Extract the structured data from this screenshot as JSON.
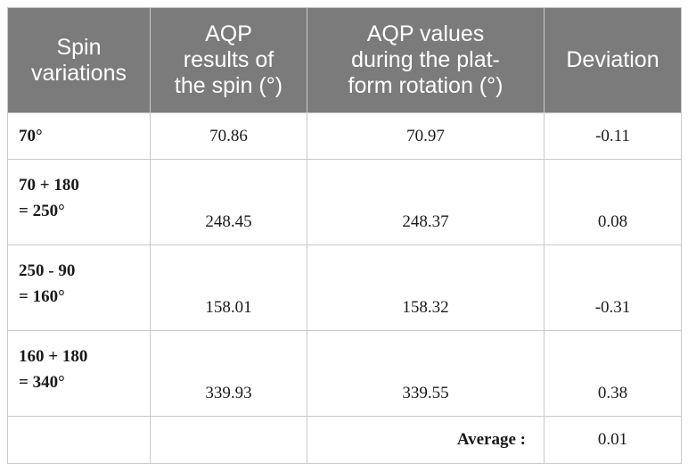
{
  "table": {
    "headers": [
      "Spin variations",
      "AQP results of the spin (°)",
      "AQP values during the plat-form rotation (°)",
      "Deviation"
    ],
    "header_lines": [
      [
        "Spin",
        "variations"
      ],
      [
        "AQP",
        "results of",
        "the spin (°)"
      ],
      [
        "AQP values",
        "during the plat-",
        "form rotation (°)"
      ],
      [
        "Deviation"
      ]
    ],
    "rows": [
      {
        "label_lines": [
          "70°"
        ],
        "spin": "70.86",
        "platform": "70.97",
        "deviation": "-0.11"
      },
      {
        "label_lines": [
          "70 + 180",
          "= 250°"
        ],
        "spin": "248.45",
        "platform": "248.37",
        "deviation": "0.08"
      },
      {
        "label_lines": [
          "250 - 90",
          "= 160°"
        ],
        "spin": "158.01",
        "platform": "158.32",
        "deviation": "-0.31"
      },
      {
        "label_lines": [
          "160 + 180",
          "= 340°"
        ],
        "spin": "339.93",
        "platform": "339.55",
        "deviation": "0.38"
      }
    ],
    "average": {
      "label": "Average :",
      "value": "0.01"
    }
  },
  "colors": {
    "header_bg": "#7b7b7b",
    "header_text": "#ffffff",
    "border": "#c9c9c9"
  }
}
